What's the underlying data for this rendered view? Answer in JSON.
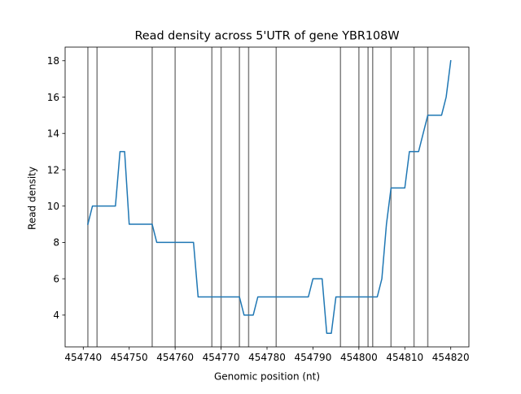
{
  "chart_data": {
    "type": "line",
    "title": "Read density across 5'UTR of gene YBR108W",
    "xlabel": "Genomic position (nt)",
    "ylabel": "Read density",
    "xlim": [
      454736.05,
      454823.95
    ],
    "ylim": [
      2.25,
      18.75
    ],
    "xticks": [
      454740,
      454750,
      454760,
      454770,
      454780,
      454790,
      454800,
      454810,
      454820
    ],
    "yticks": [
      4,
      6,
      8,
      10,
      12,
      14,
      16,
      18
    ],
    "grid": false,
    "series": [
      {
        "color": "#1f77b4",
        "x": [
          454741,
          454742,
          454743,
          454744,
          454745,
          454746,
          454747,
          454748,
          454749,
          454750,
          454751,
          454752,
          454753,
          454754,
          454755,
          454756,
          454757,
          454758,
          454759,
          454760,
          454761,
          454762,
          454763,
          454764,
          454765,
          454766,
          454767,
          454768,
          454769,
          454770,
          454771,
          454772,
          454773,
          454774,
          454775,
          454776,
          454777,
          454778,
          454779,
          454780,
          454781,
          454782,
          454783,
          454784,
          454785,
          454786,
          454787,
          454788,
          454789,
          454790,
          454791,
          454792,
          454793,
          454794,
          454795,
          454796,
          454797,
          454798,
          454799,
          454800,
          454801,
          454802,
          454803,
          454804,
          454805,
          454806,
          454807,
          454808,
          454809,
          454810,
          454811,
          454812,
          454813,
          454814,
          454815,
          454816,
          454817,
          454818,
          454819,
          454820
        ],
        "y": [
          9,
          10,
          10,
          10,
          10,
          10,
          10,
          13,
          13,
          9,
          9,
          9,
          9,
          9,
          9,
          8,
          8,
          8,
          8,
          8,
          8,
          8,
          8,
          8,
          5,
          5,
          5,
          5,
          5,
          5,
          5,
          5,
          5,
          5,
          4,
          4,
          4,
          5,
          5,
          5,
          5,
          5,
          5,
          5,
          5,
          5,
          5,
          5,
          5,
          6,
          6,
          6,
          3,
          3,
          5,
          5,
          5,
          5,
          5,
          5,
          5,
          5,
          5,
          5,
          6,
          9,
          11,
          11,
          11,
          11,
          13,
          13,
          13,
          14,
          15,
          15,
          15,
          15,
          16,
          18
        ]
      }
    ],
    "vlines": {
      "color": "#808080",
      "x": [
        454741,
        454743,
        454755,
        454760,
        454768,
        454770,
        454774,
        454776,
        454782,
        454796,
        454800,
        454802,
        454803,
        454807,
        454812,
        454815
      ]
    }
  }
}
